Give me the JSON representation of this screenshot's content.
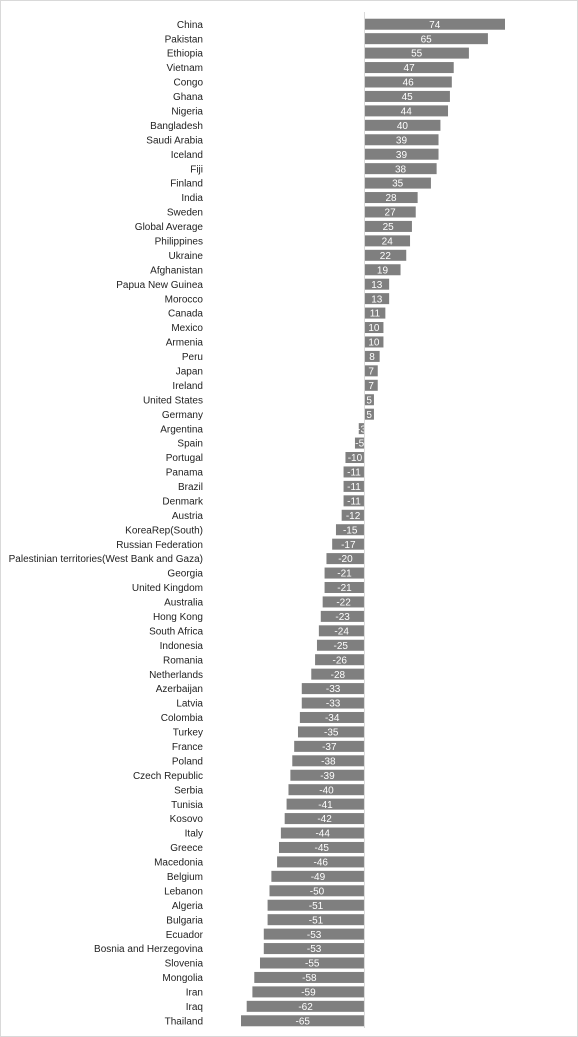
{
  "chart_data": {
    "type": "bar",
    "orientation": "horizontal",
    "color": "#7f7f7f",
    "categories": [
      "China",
      "Pakistan",
      "Ethiopia",
      "Vietnam",
      "Congo",
      "Ghana",
      "Nigeria",
      "Bangladesh",
      "Saudi Arabia",
      "Iceland",
      "Fiji",
      "Finland",
      "India",
      "Sweden",
      "Global Average",
      "Philippines",
      "Ukraine",
      "Afghanistan",
      "Papua New Guinea",
      "Morocco",
      "Canada",
      "Mexico",
      "Armenia",
      "Peru",
      "Japan",
      "Ireland",
      "United States",
      "Germany",
      "Argentina",
      "Spain",
      "Portugal",
      "Panama",
      "Brazil",
      "Denmark",
      "Austria",
      "KoreaRep(South)",
      "Russian Federation",
      "Palestinian territories(West Bank and Gaza)",
      "Georgia",
      "United Kingdom",
      "Australia",
      "Hong Kong",
      "South Africa",
      "Indonesia",
      "Romania",
      "Netherlands",
      "Azerbaijan",
      "Latvia",
      "Colombia",
      "Turkey",
      "France",
      "Poland",
      "Czech Republic",
      "Serbia",
      "Tunisia",
      "Kosovo",
      "Italy",
      "Greece",
      "Macedonia",
      "Belgium",
      "Lebanon",
      "Algeria",
      "Bulgaria",
      "Ecuador",
      "Bosnia and Herzegovina",
      "Slovenia",
      "Mongolia",
      "Iran",
      "Iraq",
      "Thailand"
    ],
    "values": [
      74,
      65,
      55,
      47,
      46,
      45,
      44,
      40,
      39,
      39,
      38,
      35,
      28,
      27,
      25,
      24,
      22,
      19,
      13,
      13,
      11,
      10,
      10,
      8,
      7,
      7,
      5,
      5,
      -3,
      -5,
      -10,
      -11,
      -11,
      -11,
      -12,
      -15,
      -17,
      -20,
      -21,
      -21,
      -22,
      -23,
      -24,
      -25,
      -26,
      -28,
      -33,
      -33,
      -34,
      -35,
      -37,
      -38,
      -39,
      -40,
      -41,
      -42,
      -44,
      -45,
      -46,
      -49,
      -50,
      -51,
      -51,
      -53,
      -53,
      -55,
      -58,
      -59,
      -62,
      -65
    ],
    "xlim": [
      -65,
      74
    ]
  }
}
